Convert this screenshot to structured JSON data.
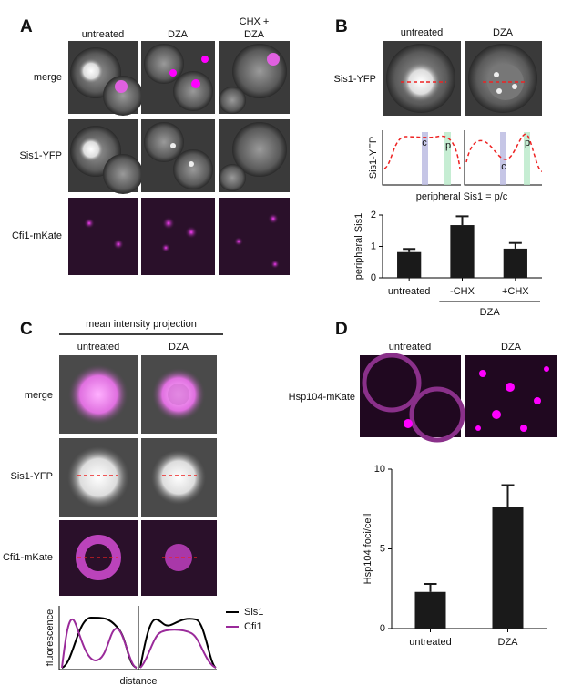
{
  "panel_a": {
    "label": "A",
    "column_headers": [
      [
        "untreated"
      ],
      [
        "DZA"
      ],
      [
        "CHX +",
        "DZA"
      ]
    ],
    "rows": [
      "merge",
      "Sis1-YFP",
      "Cfi1-mKate"
    ]
  },
  "panel_b": {
    "label": "B",
    "column_headers": [
      "untreated",
      "DZA"
    ],
    "row": "Sis1-YFP",
    "profile_ylabel": "Sis1-YFP",
    "profile_marks": [
      "c",
      "p"
    ],
    "formula": "peripheral Sis1 = p/c",
    "group_label": "DZA"
  },
  "panel_c": {
    "label": "C",
    "heading": "mean intensity projection",
    "column_headers": [
      "untreated",
      "DZA"
    ],
    "rows": [
      "merge",
      "Sis1-YFP",
      "Cfi1-mKate"
    ],
    "profile_ylabel": "fluorescence",
    "profile_xlabel": "distance",
    "legend": [
      "Sis1",
      "Cfi1"
    ]
  },
  "panel_d": {
    "label": "D",
    "column_headers": [
      "untreated",
      "DZA"
    ],
    "row": "Hsp104-mKate"
  },
  "chart_data": [
    {
      "type": "bar",
      "ylabel": "peripheral Sis1",
      "categories": [
        "untreated",
        "-CHX",
        "+CHX"
      ],
      "values": [
        0.82,
        1.68,
        0.93
      ],
      "errors": [
        0.1,
        0.28,
        0.18
      ],
      "color": "#1a1a1a",
      "ylim": [
        0,
        2
      ],
      "yticks": [
        0,
        1,
        2
      ]
    },
    {
      "type": "bar",
      "ylabel": "Hsp104 foci/cell",
      "categories": [
        "untreated",
        "DZA"
      ],
      "values": [
        2.3,
        7.6
      ],
      "errors": [
        0.5,
        1.4
      ],
      "color": "#1a1a1a",
      "ylim": [
        0,
        10
      ],
      "yticks": [
        0,
        5,
        10
      ]
    }
  ]
}
